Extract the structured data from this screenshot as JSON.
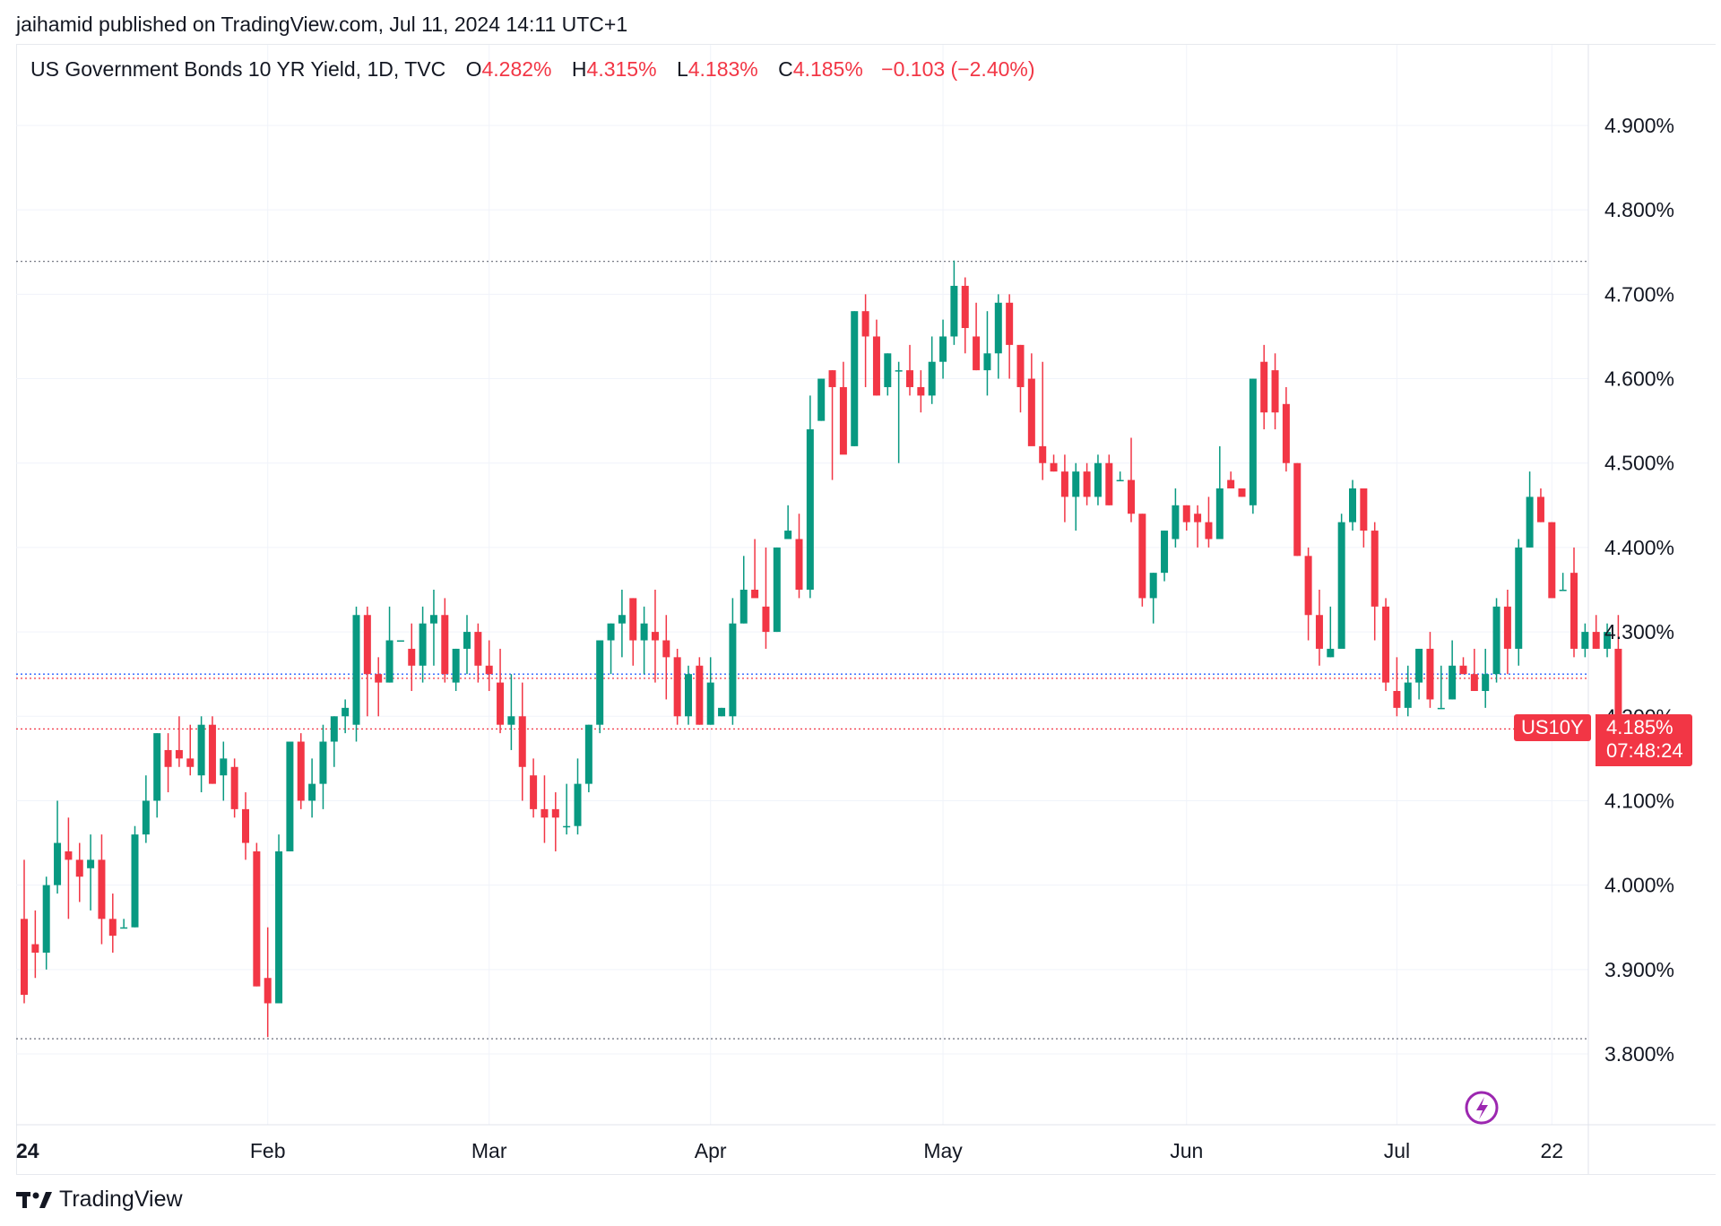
{
  "header": {
    "publish_line": "jaihamid published on TradingView.com, Jul 11, 2024 14:11 UTC+1"
  },
  "legend": {
    "symbol": "US Government Bonds 10 YR Yield, 1D, TVC",
    "o_label": "O",
    "o_value": "4.282%",
    "h_label": "H",
    "h_value": "4.315%",
    "l_label": "L",
    "l_value": "4.183%",
    "c_label": "C",
    "c_value": "4.185%",
    "change": "−0.103 (−2.40%)"
  },
  "last_price_badge": {
    "name": "US10Y",
    "price": "4.185%",
    "countdown": "07:48:24"
  },
  "footer": {
    "brand": "TradingView"
  },
  "colors": {
    "up": "#089981",
    "down": "#f23645",
    "grid": "#f0f3fa",
    "text": "#131722",
    "accent_icon": "#9c27b0",
    "blue_line": "#2962ff"
  },
  "chart_data": {
    "type": "candlestick",
    "ylim": [
      3.71,
      5.0
    ],
    "yticks": [
      "4.900%",
      "4.800%",
      "4.700%",
      "4.600%",
      "4.500%",
      "4.400%",
      "4.300%",
      "4.200%",
      "4.100%",
      "4.000%",
      "3.900%",
      "3.800%"
    ],
    "ytick_values": [
      4.9,
      4.8,
      4.7,
      4.6,
      4.5,
      4.4,
      4.3,
      4.2,
      4.1,
      4.0,
      3.9,
      3.8
    ],
    "xticks": [
      {
        "label": "24",
        "index": 0
      },
      {
        "label": "Feb",
        "index": 22
      },
      {
        "label": "Mar",
        "index": 42
      },
      {
        "label": "Apr",
        "index": 62
      },
      {
        "label": "May",
        "index": 83
      },
      {
        "label": "Jun",
        "index": 105
      },
      {
        "label": "Jul",
        "index": 124
      },
      {
        "label": "22",
        "index": 138
      }
    ],
    "reference_lines": [
      {
        "value": 4.739,
        "color": "#787b86"
      },
      {
        "value": 3.818,
        "color": "#787b86"
      },
      {
        "value": 4.25,
        "color": "#2962ff"
      },
      {
        "value": 4.245,
        "color": "#f23645"
      },
      {
        "value": 4.185,
        "color": "#f23645"
      }
    ],
    "ohlc": [
      [
        3.96,
        4.03,
        3.86,
        3.87
      ],
      [
        3.93,
        3.97,
        3.89,
        3.92
      ],
      [
        3.92,
        4.01,
        3.9,
        4.0
      ],
      [
        4.0,
        4.1,
        3.99,
        4.05
      ],
      [
        4.04,
        4.08,
        3.96,
        4.03
      ],
      [
        4.03,
        4.05,
        3.98,
        4.01
      ],
      [
        4.02,
        4.06,
        3.97,
        4.03
      ],
      [
        4.03,
        4.06,
        3.93,
        3.96
      ],
      [
        3.96,
        3.99,
        3.92,
        3.94
      ],
      [
        3.95,
        3.96,
        3.95,
        3.95
      ],
      [
        3.95,
        4.07,
        3.95,
        4.06
      ],
      [
        4.06,
        4.13,
        4.05,
        4.1
      ],
      [
        4.1,
        4.18,
        4.08,
        4.18
      ],
      [
        4.16,
        4.18,
        4.11,
        4.14
      ],
      [
        4.16,
        4.2,
        4.14,
        4.15
      ],
      [
        4.15,
        4.19,
        4.13,
        4.14
      ],
      [
        4.13,
        4.2,
        4.11,
        4.19
      ],
      [
        4.19,
        4.2,
        4.12,
        4.12
      ],
      [
        4.13,
        4.17,
        4.1,
        4.15
      ],
      [
        4.14,
        4.15,
        4.08,
        4.09
      ],
      [
        4.09,
        4.11,
        4.03,
        4.05
      ],
      [
        4.04,
        4.05,
        3.88,
        3.88
      ],
      [
        3.89,
        3.95,
        3.82,
        3.86
      ],
      [
        3.86,
        4.06,
        3.87,
        4.04
      ],
      [
        4.04,
        4.16,
        4.04,
        4.17
      ],
      [
        4.17,
        4.18,
        4.09,
        4.1
      ],
      [
        4.1,
        4.15,
        4.08,
        4.12
      ],
      [
        4.12,
        4.19,
        4.09,
        4.17
      ],
      [
        4.17,
        4.2,
        4.14,
        4.2
      ],
      [
        4.2,
        4.22,
        4.18,
        4.21
      ],
      [
        4.19,
        4.33,
        4.17,
        4.32
      ],
      [
        4.32,
        4.33,
        4.2,
        4.25
      ],
      [
        4.25,
        4.27,
        4.2,
        4.24
      ],
      [
        4.24,
        4.33,
        4.24,
        4.29
      ],
      [
        4.29,
        4.29,
        4.29,
        4.29
      ],
      [
        4.28,
        4.31,
        4.23,
        4.26
      ],
      [
        4.26,
        4.33,
        4.24,
        4.31
      ],
      [
        4.31,
        4.35,
        4.26,
        4.32
      ],
      [
        4.32,
        4.34,
        4.24,
        4.25
      ],
      [
        4.24,
        4.28,
        4.23,
        4.28
      ],
      [
        4.28,
        4.32,
        4.25,
        4.3
      ],
      [
        4.3,
        4.31,
        4.24,
        4.26
      ],
      [
        4.26,
        4.29,
        4.23,
        4.25
      ],
      [
        4.24,
        4.28,
        4.18,
        4.19
      ],
      [
        4.19,
        4.25,
        4.16,
        4.2
      ],
      [
        4.2,
        4.24,
        4.1,
        4.14
      ],
      [
        4.13,
        4.15,
        4.08,
        4.09
      ],
      [
        4.09,
        4.13,
        4.05,
        4.08
      ],
      [
        4.09,
        4.11,
        4.04,
        4.08
      ],
      [
        4.07,
        4.12,
        4.06,
        4.07
      ],
      [
        4.07,
        4.15,
        4.06,
        4.12
      ],
      [
        4.12,
        4.19,
        4.11,
        4.19
      ],
      [
        4.19,
        4.29,
        4.18,
        4.29
      ],
      [
        4.29,
        4.31,
        4.25,
        4.31
      ],
      [
        4.31,
        4.35,
        4.27,
        4.32
      ],
      [
        4.34,
        4.34,
        4.26,
        4.29
      ],
      [
        4.29,
        4.33,
        4.25,
        4.31
      ],
      [
        4.3,
        4.35,
        4.24,
        4.29
      ],
      [
        4.29,
        4.32,
        4.22,
        4.27
      ],
      [
        4.27,
        4.28,
        4.19,
        4.2
      ],
      [
        4.2,
        4.26,
        4.19,
        4.25
      ],
      [
        4.26,
        4.27,
        4.19,
        4.19
      ],
      [
        4.19,
        4.27,
        4.19,
        4.24
      ],
      [
        4.2,
        4.21,
        4.2,
        4.21
      ],
      [
        4.2,
        4.34,
        4.19,
        4.31
      ],
      [
        4.31,
        4.39,
        4.31,
        4.35
      ],
      [
        4.35,
        4.41,
        4.35,
        4.34
      ],
      [
        4.33,
        4.4,
        4.28,
        4.3
      ],
      [
        4.3,
        4.4,
        4.3,
        4.4
      ],
      [
        4.41,
        4.45,
        4.41,
        4.42
      ],
      [
        4.41,
        4.44,
        4.34,
        4.35
      ],
      [
        4.35,
        4.58,
        4.34,
        4.54
      ],
      [
        4.55,
        4.6,
        4.55,
        4.6
      ],
      [
        4.61,
        4.61,
        4.48,
        4.59
      ],
      [
        4.59,
        4.62,
        4.52,
        4.51
      ],
      [
        4.52,
        4.68,
        4.52,
        4.68
      ],
      [
        4.68,
        4.7,
        4.59,
        4.65
      ],
      [
        4.65,
        4.67,
        4.58,
        4.58
      ],
      [
        4.59,
        4.63,
        4.58,
        4.63
      ],
      [
        4.61,
        4.62,
        4.5,
        4.61
      ],
      [
        4.61,
        4.64,
        4.58,
        4.59
      ],
      [
        4.59,
        4.61,
        4.56,
        4.58
      ],
      [
        4.58,
        4.65,
        4.57,
        4.62
      ],
      [
        4.62,
        4.67,
        4.6,
        4.65
      ],
      [
        4.65,
        4.74,
        4.64,
        4.71
      ],
      [
        4.71,
        4.72,
        4.63,
        4.66
      ],
      [
        4.65,
        4.69,
        4.61,
        4.61
      ],
      [
        4.61,
        4.68,
        4.58,
        4.63
      ],
      [
        4.63,
        4.7,
        4.6,
        4.69
      ],
      [
        4.69,
        4.7,
        4.6,
        4.64
      ],
      [
        4.64,
        4.64,
        4.56,
        4.59
      ],
      [
        4.6,
        4.63,
        4.53,
        4.52
      ],
      [
        4.52,
        4.62,
        4.48,
        4.5
      ],
      [
        4.5,
        4.51,
        4.49,
        4.49
      ],
      [
        4.49,
        4.51,
        4.43,
        4.46
      ],
      [
        4.46,
        4.5,
        4.42,
        4.49
      ],
      [
        4.49,
        4.5,
        4.45,
        4.46
      ],
      [
        4.46,
        4.51,
        4.45,
        4.5
      ],
      [
        4.5,
        4.51,
        4.45,
        4.45
      ],
      [
        4.48,
        4.49,
        4.48,
        4.48
      ],
      [
        4.48,
        4.53,
        4.43,
        4.44
      ],
      [
        4.44,
        4.44,
        4.33,
        4.34
      ],
      [
        4.34,
        4.37,
        4.31,
        4.37
      ],
      [
        4.37,
        4.42,
        4.36,
        4.42
      ],
      [
        4.41,
        4.47,
        4.4,
        4.45
      ],
      [
        4.45,
        4.45,
        4.42,
        4.43
      ],
      [
        4.44,
        4.45,
        4.4,
        4.43
      ],
      [
        4.43,
        4.46,
        4.4,
        4.41
      ],
      [
        4.41,
        4.52,
        4.41,
        4.47
      ],
      [
        4.48,
        4.49,
        4.47,
        4.47
      ],
      [
        4.47,
        4.47,
        4.46,
        4.46
      ],
      [
        4.45,
        4.6,
        4.44,
        4.6
      ],
      [
        4.62,
        4.64,
        4.54,
        4.56
      ],
      [
        4.61,
        4.63,
        4.54,
        4.56
      ],
      [
        4.57,
        4.59,
        4.49,
        4.5
      ],
      [
        4.5,
        4.5,
        4.39,
        4.39
      ],
      [
        4.39,
        4.4,
        4.29,
        4.32
      ],
      [
        4.32,
        4.35,
        4.26,
        4.28
      ],
      [
        4.27,
        4.33,
        4.27,
        4.28
      ],
      [
        4.28,
        4.44,
        4.29,
        4.43
      ],
      [
        4.43,
        4.48,
        4.42,
        4.47
      ],
      [
        4.47,
        4.47,
        4.4,
        4.42
      ],
      [
        4.42,
        4.43,
        4.29,
        4.33
      ],
      [
        4.33,
        4.34,
        4.23,
        4.24
      ],
      [
        4.23,
        4.27,
        4.2,
        4.21
      ],
      [
        4.21,
        4.26,
        4.2,
        4.24
      ],
      [
        4.24,
        4.27,
        4.22,
        4.28
      ],
      [
        4.28,
        4.3,
        4.21,
        4.22
      ],
      [
        4.21,
        4.26,
        4.21,
        4.21
      ],
      [
        4.22,
        4.29,
        4.22,
        4.26
      ],
      [
        4.26,
        4.27,
        4.25,
        4.25
      ],
      [
        4.25,
        4.28,
        4.23,
        4.23
      ],
      [
        4.23,
        4.28,
        4.21,
        4.25
      ],
      [
        4.25,
        4.34,
        4.24,
        4.33
      ],
      [
        4.33,
        4.35,
        4.25,
        4.28
      ],
      [
        4.28,
        4.41,
        4.26,
        4.4
      ],
      [
        4.4,
        4.49,
        4.4,
        4.46
      ],
      [
        4.46,
        4.47,
        4.43,
        4.43
      ],
      [
        4.43,
        4.43,
        4.35,
        4.34
      ],
      [
        4.35,
        4.37,
        4.35,
        4.35
      ],
      [
        4.37,
        4.4,
        4.27,
        4.28
      ],
      [
        4.28,
        4.31,
        4.27,
        4.3
      ],
      [
        4.3,
        4.32,
        4.28,
        4.28
      ],
      [
        4.28,
        4.31,
        4.27,
        4.3
      ],
      [
        4.28,
        4.32,
        4.18,
        4.185
      ]
    ]
  }
}
